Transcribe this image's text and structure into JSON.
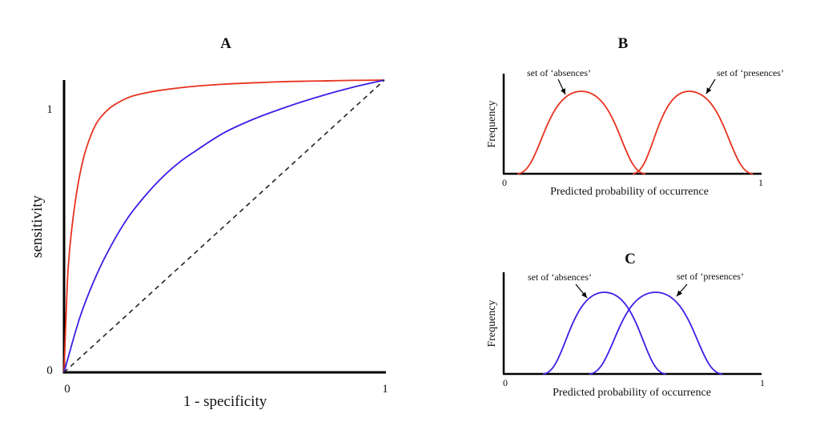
{
  "chart_data": [
    {
      "panel": "A",
      "type": "line",
      "title": "A",
      "xlabel": "1 - specificity",
      "ylabel": "sensitivity",
      "xlim": [
        0,
        1
      ],
      "ylim": [
        0,
        1
      ],
      "x_ticks": [
        "0",
        "1"
      ],
      "y_ticks": [
        "0",
        "1"
      ],
      "grid": false,
      "series": [
        {
          "color": "#e8321e",
          "x": [
            0,
            0.01,
            0.02,
            0.04,
            0.06,
            0.08,
            0.1,
            0.12,
            0.15,
            0.2,
            0.25,
            0.3,
            0.4,
            0.5,
            0.6,
            0.7,
            0.8,
            0.9,
            1.0
          ],
          "y": [
            0,
            0.3,
            0.45,
            0.62,
            0.73,
            0.8,
            0.85,
            0.88,
            0.91,
            0.94,
            0.955,
            0.965,
            0.978,
            0.986,
            0.991,
            0.995,
            0.997,
            0.999,
            1.0
          ]
        },
        {
          "color": "#3a1ee6",
          "x": [
            0,
            0.05,
            0.1,
            0.15,
            0.2,
            0.25,
            0.3,
            0.35,
            0.4,
            0.5,
            0.6,
            0.7,
            0.8,
            0.9,
            1.0
          ],
          "y": [
            0,
            0.19,
            0.33,
            0.44,
            0.53,
            0.6,
            0.66,
            0.71,
            0.75,
            0.82,
            0.87,
            0.91,
            0.945,
            0.975,
            1.0
          ]
        },
        {
          "color": "#222222",
          "dashed": true,
          "x": [
            0,
            1
          ],
          "y": [
            0,
            1
          ]
        }
      ]
    },
    {
      "panel": "B",
      "type": "area",
      "title": "B",
      "xlabel": "Predicted probability of occurrence",
      "ylabel": "Frequency",
      "xlim": [
        0,
        1
      ],
      "x_ticks": [
        "0",
        "1"
      ],
      "color": "#e8321e",
      "curves": [
        {
          "annotation": "set of ‘absences’",
          "x_start": 0.05,
          "x_peak": 0.3,
          "x_end": 0.55,
          "peak": 1.0
        },
        {
          "annotation": "set of ‘presences’",
          "x_start": 0.5,
          "x_peak": 0.72,
          "x_end": 0.97,
          "peak": 1.0
        }
      ]
    },
    {
      "panel": "C",
      "type": "area",
      "title": "C",
      "xlabel": "Predicted probability of occurrence",
      "ylabel": "Frequency",
      "xlim": [
        0,
        1
      ],
      "x_ticks": [
        "0",
        "1"
      ],
      "color": "#3a1ee6",
      "curves": [
        {
          "annotation": "set of ‘absences’",
          "x_start": 0.15,
          "x_peak": 0.39,
          "x_end": 0.63,
          "peak": 1.0
        },
        {
          "annotation": "set of ‘presences’",
          "x_start": 0.33,
          "x_peak": 0.59,
          "x_end": 0.85,
          "peak": 1.0
        }
      ]
    }
  ]
}
